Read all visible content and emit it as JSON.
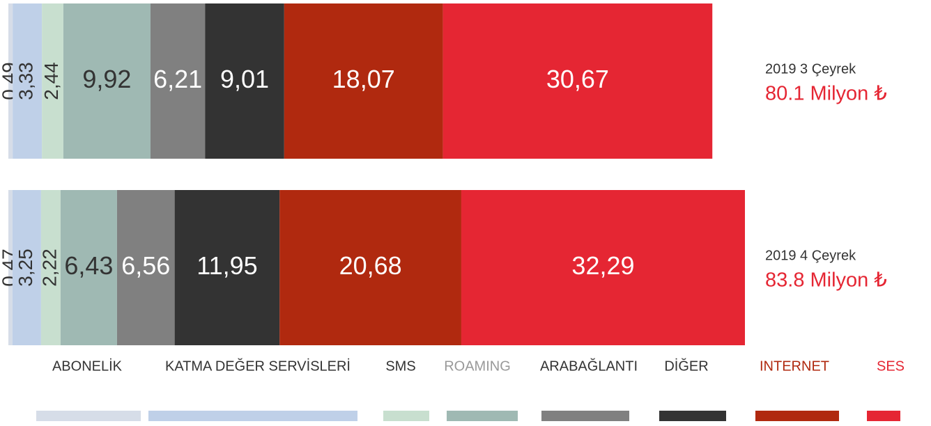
{
  "chart_data": {
    "type": "stacked-bar-horizontal",
    "categories": [
      "2019 3 Çeyrek",
      "2019 4 Çeyrek"
    ],
    "totals": [
      "80.1 Milyon ₺",
      "83.8 Milyon ₺"
    ],
    "total_color": "#e52633",
    "series": [
      {
        "name": "ABONELİK",
        "color": "#d6dde8",
        "label_color": "#333333",
        "values": [
          0.49,
          0.47
        ],
        "value_labels": [
          "0,49",
          "0,47"
        ]
      },
      {
        "name": "KATMA DEĞER SERVİSLERİ",
        "color": "#bfd0e8",
        "label_color": "#333333",
        "values": [
          3.33,
          3.25
        ],
        "value_labels": [
          "3,33",
          "3,25"
        ]
      },
      {
        "name": "SMS",
        "color": "#c8dfcf",
        "label_color": "#333333",
        "values": [
          2.44,
          2.22
        ],
        "value_labels": [
          "2,44",
          "2,22"
        ]
      },
      {
        "name": "ROAMING",
        "color": "#9fb9b3",
        "label_color": "#999999",
        "values": [
          9.92,
          6.43
        ],
        "value_labels": [
          "9,92",
          "6,43"
        ]
      },
      {
        "name": "ARABAĞLANTI",
        "color": "#808080",
        "label_color": "#333333",
        "values": [
          6.21,
          6.56
        ],
        "value_labels": [
          "6,21",
          "6,56"
        ]
      },
      {
        "name": "DİĞER",
        "color": "#333333",
        "label_color": "#333333",
        "values": [
          9.01,
          11.95
        ],
        "value_labels": [
          "9,01",
          "11,95"
        ]
      },
      {
        "name": "INTERNET",
        "color": "#b0290f",
        "label_color": "#b0290f",
        "values": [
          18.07,
          20.68
        ],
        "value_labels": [
          "18,07",
          "20,68"
        ]
      },
      {
        "name": "SES",
        "color": "#e52633",
        "label_color": "#e52633",
        "values": [
          30.67,
          32.29
        ],
        "value_labels": [
          "30,67",
          "32,29"
        ]
      }
    ]
  }
}
